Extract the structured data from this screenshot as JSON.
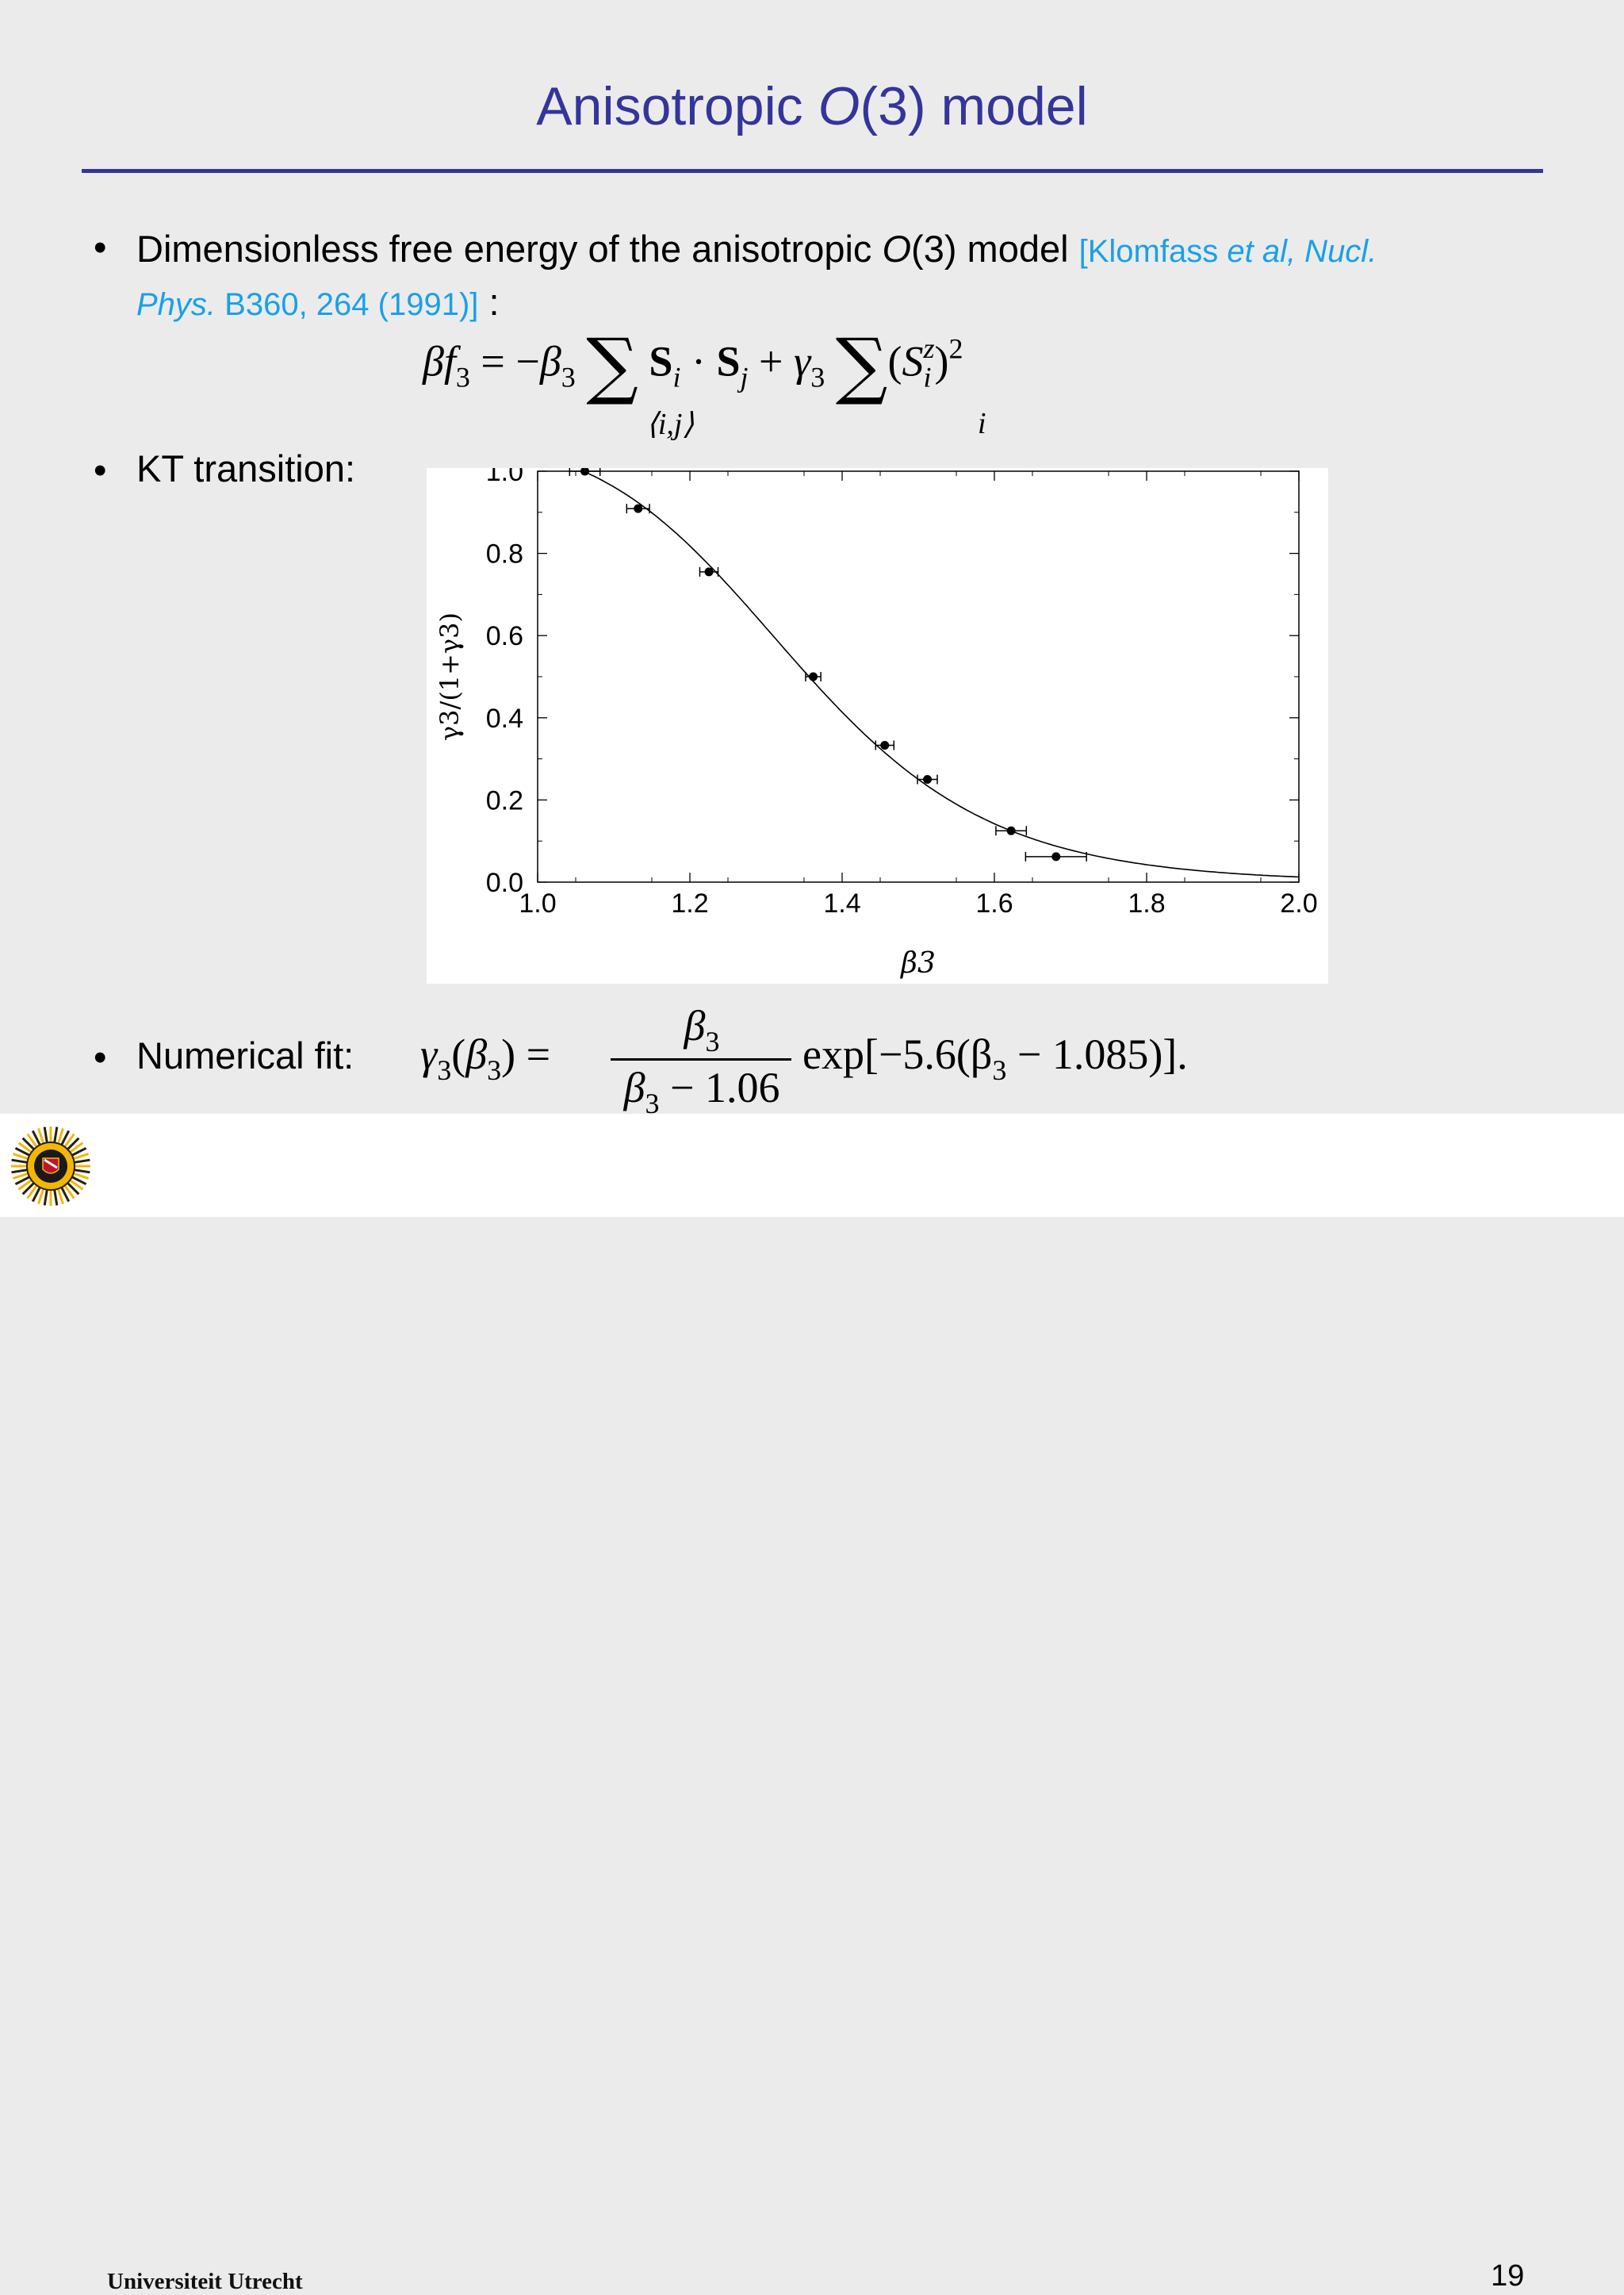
{
  "slide": {
    "title_prefix": "Anisotropic ",
    "title_italic": "O",
    "title_suffix": "(3) model",
    "page_number": "19"
  },
  "bullets": {
    "b1_text": "Dimensionless free energy of the anisotropic ",
    "b1_italic": "O",
    "b1_suffix": "(3) model ",
    "b1_ref_open": "[Klomfass ",
    "b1_ref_etal": "et al, Nucl.",
    "b1_ref_phys": "Phys.",
    "b1_ref_rest": " B360, 264 (1991)]",
    "b1_colon": " :",
    "b2_text": "KT transition:",
    "b3_text": "Numerical fit:"
  },
  "equations": {
    "free_energy_under_sum1": "⟨i,j⟩",
    "free_energy_under_sum2": "i",
    "fit_numerator": "β",
    "fit_denominator_const": "1.06",
    "fit_exp": "exp[−5.6(β",
    "fit_exp_tail": " − 1.085)]."
  },
  "footer": {
    "university": "Universiteit Utrecht"
  },
  "chart_data": {
    "type": "scatter",
    "xlabel": "β3",
    "ylabel": "γ3/(1+γ3)",
    "xlim": [
      1.0,
      2.0
    ],
    "ylim": [
      0.0,
      1.0
    ],
    "xticks": [
      "1.0",
      "1.2",
      "1.4",
      "1.6",
      "1.8",
      "2.0"
    ],
    "yticks": [
      "0.0",
      "0.2",
      "0.4",
      "0.6",
      "0.8",
      "1.0"
    ],
    "points": [
      {
        "x": 1.062,
        "y": 1.0,
        "xerr": 0.02
      },
      {
        "x": 1.132,
        "y": 0.909,
        "xerr": 0.015
      },
      {
        "x": 1.225,
        "y": 0.755,
        "xerr": 0.012
      },
      {
        "x": 1.362,
        "y": 0.5,
        "xerr": 0.01
      },
      {
        "x": 1.456,
        "y": 0.333,
        "xerr": 0.012
      },
      {
        "x": 1.512,
        "y": 0.25,
        "xerr": 0.013
      },
      {
        "x": 1.622,
        "y": 0.125,
        "xerr": 0.02
      },
      {
        "x": 1.681,
        "y": 0.062,
        "xerr": 0.04
      }
    ],
    "fit_curve": "γ3(β3) = β3/(β3 − 1.06) exp[−5.6(β3 − 1.085)]",
    "grid": false
  }
}
